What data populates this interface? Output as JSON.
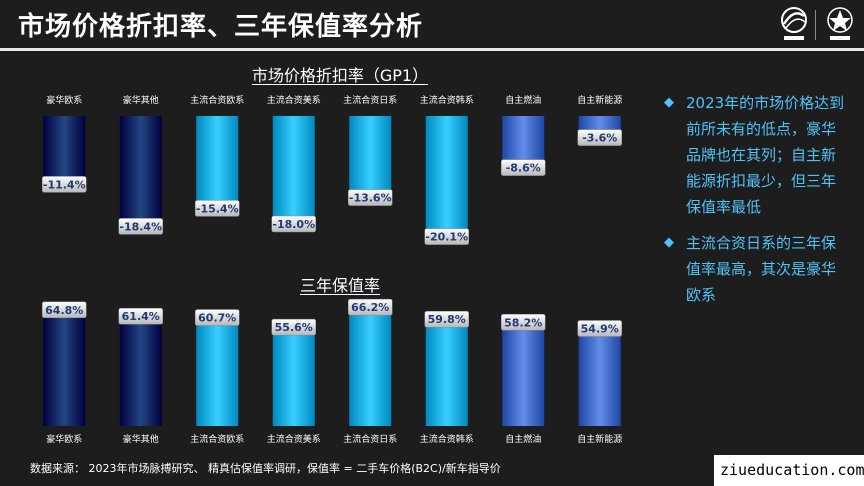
{
  "header": {
    "title": "市场价格折扣率、三年保值率分析"
  },
  "colors": {
    "navy": "#0b2d6b",
    "cyan": "#1fb6ec",
    "periwinkle": "#4a74d0",
    "label_text": "#1f3a78",
    "bullet_text": "#4fc3f7"
  },
  "icons": [
    "brand-logo-icon",
    "cadc-logo-icon",
    "diamond-bullet-icon"
  ],
  "chart_data": [
    {
      "type": "bar",
      "title": "市场价格折扣率（GP1）",
      "categories": [
        "豪华欧系",
        "豪华其他",
        "主流合资欧系",
        "主流合资美系",
        "主流合资日系",
        "主流合资韩系",
        "自主燃油",
        "自主新能源"
      ],
      "values": [
        -11.4,
        -18.4,
        -15.4,
        -18.0,
        -13.6,
        -20.1,
        -8.6,
        -3.6
      ],
      "value_labels": [
        "-11.4%",
        "-18.4%",
        "-15.4%",
        "-18.0%",
        "-13.6%",
        "-20.1%",
        "-8.6%",
        "-3.6%"
      ],
      "bar_colors": [
        "navy",
        "navy",
        "cyan",
        "cyan",
        "cyan",
        "cyan",
        "periwinkle",
        "periwinkle"
      ],
      "ylim": [
        -22,
        0
      ],
      "category_axis": "top",
      "grid": false
    },
    {
      "type": "bar",
      "title": "三年保值率",
      "categories": [
        "豪华欧系",
        "豪华其他",
        "主流合资欧系",
        "主流合资美系",
        "主流合资日系",
        "主流合资韩系",
        "自主燃油",
        "自主新能源"
      ],
      "values": [
        64.8,
        61.4,
        60.7,
        55.6,
        66.2,
        59.8,
        58.2,
        54.9
      ],
      "value_labels": [
        "64.8%",
        "61.4%",
        "60.7%",
        "55.6%",
        "66.2%",
        "59.8%",
        "58.2%",
        "54.9%"
      ],
      "bar_colors": [
        "navy",
        "navy",
        "cyan",
        "cyan",
        "cyan",
        "cyan",
        "periwinkle",
        "periwinkle"
      ],
      "ylim": [
        0,
        70
      ],
      "category_axis": "bottom",
      "grid": false
    }
  ],
  "bullets": [
    "2023年的市场价格达到前所未有的低点，豪华品牌也在其列；自主新能源折扣最少，但三年保值率最低",
    "主流合资日系的三年保值率最高，其次是豪华欧系"
  ],
  "footer": {
    "source": "数据来源： 2023年市场脉搏研究、 精真估保值率调研，保值率 = 二手车价格(B2C)/新车指导价"
  },
  "watermark": "ziueducation.com"
}
